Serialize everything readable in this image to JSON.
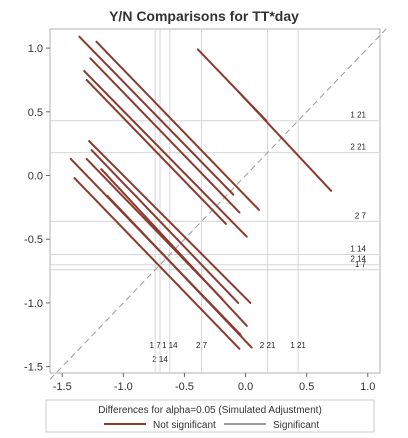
{
  "chart_data": {
    "type": "line",
    "title": "Y/N Comparisons for TT*day",
    "xlim": [
      -1.6,
      1.1
    ],
    "ylim": [
      -1.55,
      1.15
    ],
    "x_ticks": [
      -1.5,
      -1.0,
      -0.5,
      0.0,
      0.5,
      1.0
    ],
    "x_tick_labels": [
      "-1.5",
      "-1.0",
      "-0.5",
      "0.0",
      "0.5",
      "1.0"
    ],
    "y_ticks": [
      -1.5,
      -1.0,
      -0.5,
      0.0,
      0.5,
      1.0
    ],
    "y_tick_labels": [
      "-1.5",
      "-1.0",
      "-0.5",
      "0.0",
      "0.5",
      "1.0"
    ],
    "diagonal": {
      "from": [
        -1.6,
        -1.6
      ],
      "to": [
        1.15,
        1.15
      ],
      "style": "dashed"
    },
    "reference_levels": [
      {
        "label": "1 21",
        "value": 0.43
      },
      {
        "label": "2 21",
        "value": 0.18
      },
      {
        "label": "2 7",
        "value": -0.36
      },
      {
        "label": "1 14",
        "value": -0.62
      },
      {
        "label": "2 14",
        "value": -0.7
      },
      {
        "label": "1 7",
        "value": -0.74
      }
    ],
    "series": [
      {
        "name": "Not significant",
        "color": "#8b3a2e"
      },
      {
        "name": "Significant",
        "color": "#7a7a7a"
      }
    ],
    "segments": [
      {
        "x1": -1.36,
        "y1": 1.09,
        "x2": -0.1,
        "y2": -0.15
      },
      {
        "x1": -1.22,
        "y1": 1.05,
        "x2": 0.11,
        "y2": -0.27
      },
      {
        "x1": -1.27,
        "y1": 0.92,
        "x2": -0.05,
        "y2": -0.29
      },
      {
        "x1": -1.32,
        "y1": 0.82,
        "x2": 0.01,
        "y2": -0.48
      },
      {
        "x1": -1.3,
        "y1": 0.75,
        "x2": -0.16,
        "y2": -0.38
      },
      {
        "x1": -0.39,
        "y1": 0.99,
        "x2": 0.17,
        "y2": 0.43
      },
      {
        "x1": -0.06,
        "y1": 0.66,
        "x2": 0.7,
        "y2": -0.12
      },
      {
        "x1": -1.43,
        "y1": 0.13,
        "x2": -0.04,
        "y2": -1.25
      },
      {
        "x1": -1.28,
        "y1": 0.27,
        "x2": 0.04,
        "y2": -1.0
      },
      {
        "x1": -1.26,
        "y1": 0.2,
        "x2": -0.06,
        "y2": -1.0
      },
      {
        "x1": -1.3,
        "y1": 0.13,
        "x2": -0.19,
        "y2": -0.97
      },
      {
        "x1": -1.18,
        "y1": 0.05,
        "x2": 0.01,
        "y2": -1.18
      },
      {
        "x1": -1.13,
        "y1": -0.16,
        "x2": 0.05,
        "y2": -1.35
      },
      {
        "x1": -1.4,
        "y1": -0.02,
        "x2": -0.05,
        "y2": -1.36
      }
    ],
    "legend": {
      "title": "Differences for alpha=0.05 (Simulated Adjustment)",
      "position": "bottom"
    }
  }
}
